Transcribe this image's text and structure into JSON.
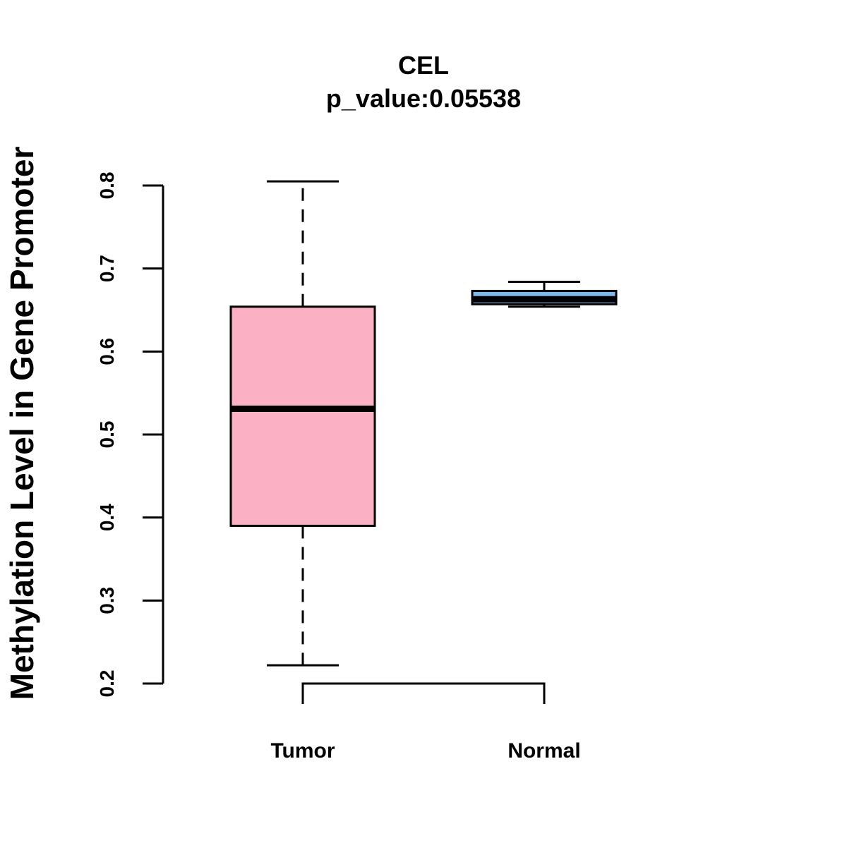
{
  "chart_data": {
    "type": "box",
    "title": "CEL",
    "subtitle": "p_value:0.05538",
    "xlabel": "",
    "ylabel": "Methylation Level in Gene Promoter",
    "ylim": [
      0.2,
      0.8
    ],
    "yticks": [
      0.2,
      0.3,
      0.4,
      0.5,
      0.6,
      0.7,
      0.8
    ],
    "ytick_labels": [
      "0.2",
      "0.3",
      "0.4",
      "0.5",
      "0.6",
      "0.7",
      "0.8"
    ],
    "categories": [
      "Tumor",
      "Normal"
    ],
    "series": [
      {
        "name": "Tumor",
        "color": "#FBB0C3",
        "whisker_low": 0.222,
        "q1": 0.39,
        "median": 0.531,
        "q3": 0.654,
        "whisker_high": 0.805
      },
      {
        "name": "Normal",
        "color": "#7FB8EA",
        "whisker_low": 0.654,
        "q1": 0.657,
        "median": 0.663,
        "q3": 0.673,
        "whisker_high": 0.684
      }
    ],
    "comparison_bracket": {
      "between": [
        "Tumor",
        "Normal"
      ],
      "y": 0.2
    },
    "grid": false,
    "legend": "none"
  }
}
